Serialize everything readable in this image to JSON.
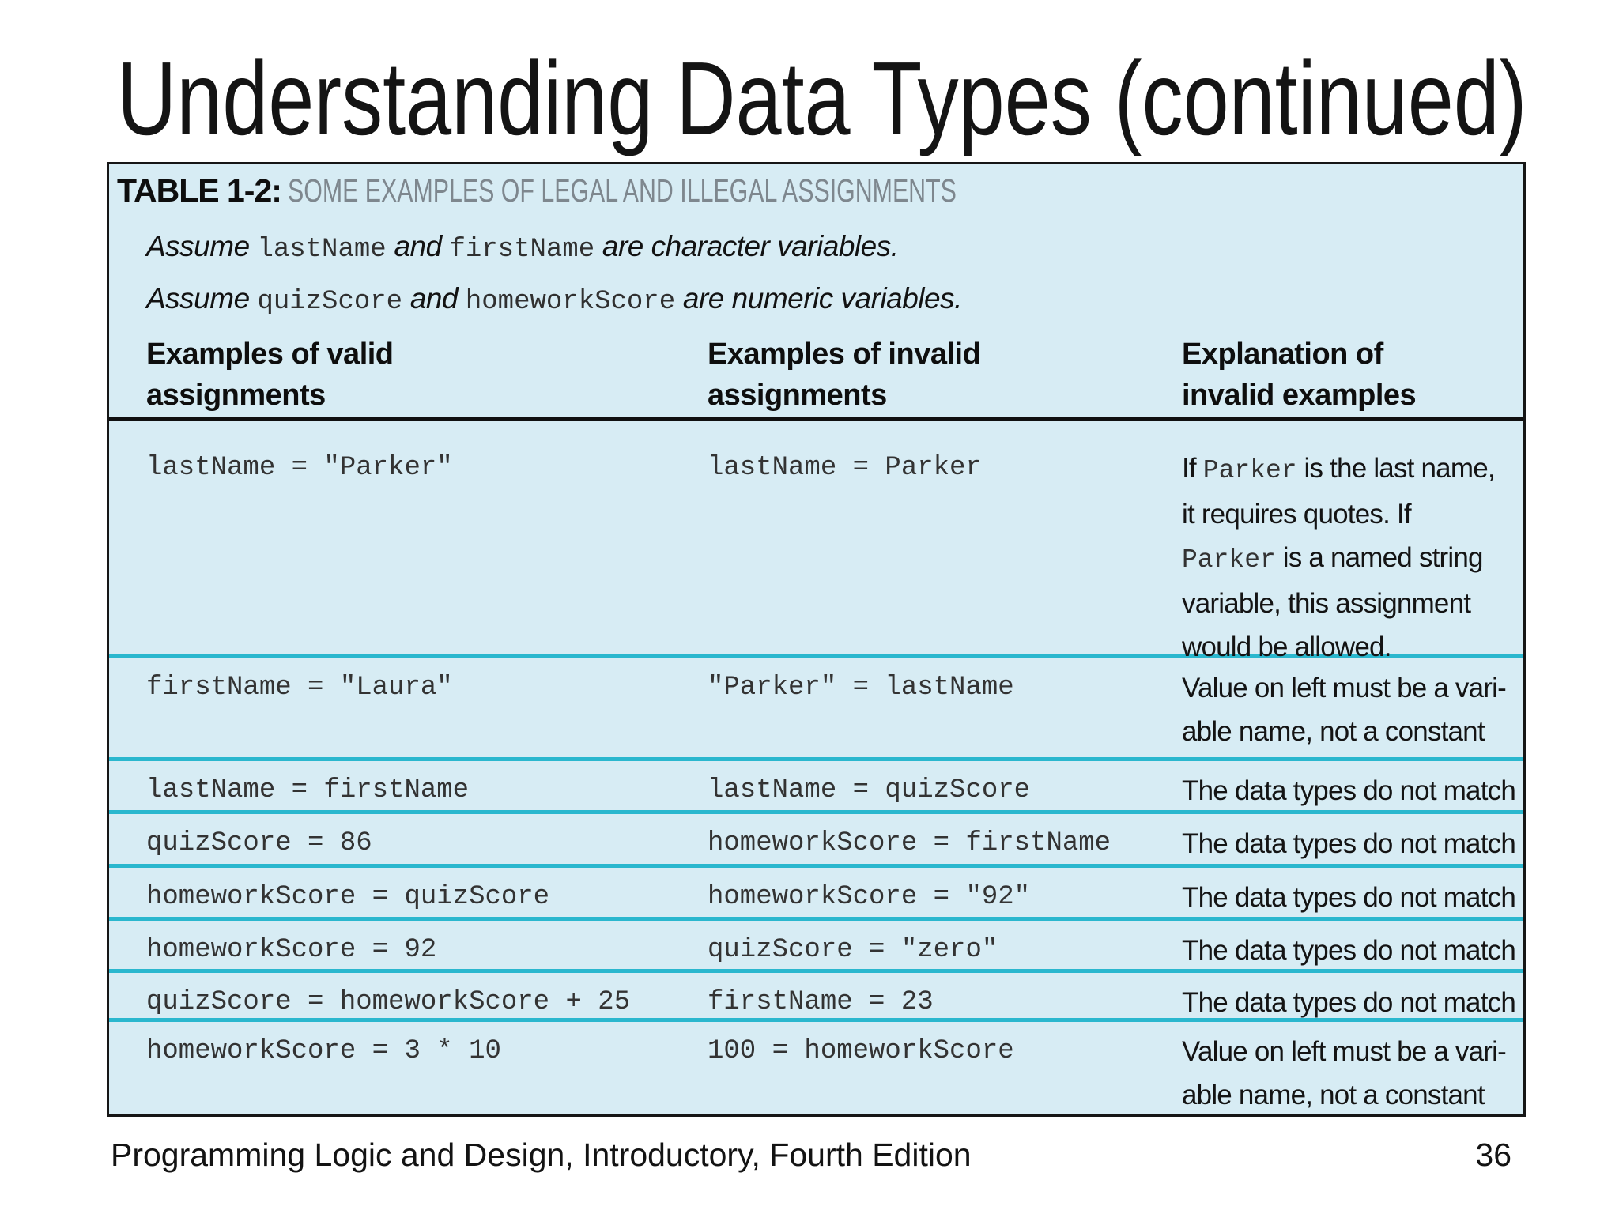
{
  "title": "Understanding Data Types (continued)",
  "table": {
    "caption_label": "TABLE 1-2:",
    "caption_text": "SOME EXAMPLES OF LEGAL AND ILLEGAL ASSIGNMENTS",
    "assume_notes": [
      [
        [
          "Assume ",
          {
            "t": "lastName",
            "m": 1
          },
          " and ",
          {
            "t": "firstName",
            "m": 1
          },
          " are character variables."
        ]
      ],
      [
        [
          "Assume ",
          {
            "t": "quizScore",
            "m": 1
          },
          " and ",
          {
            "t": "homeworkScore",
            "m": 1
          },
          " are numeric variables."
        ]
      ]
    ],
    "columns": [
      {
        "label": [
          "Examples of valid",
          "assignments"
        ]
      },
      {
        "label": [
          "Examples of invalid",
          "assignments"
        ]
      },
      {
        "label": [
          "Explanation of",
          "invalid examples"
        ]
      }
    ],
    "rows": [
      {
        "valid": "lastName = \"Parker\"",
        "invalid": "lastName = Parker",
        "explanation": [
          [
            "If ",
            {
              "t": "Parker",
              "m": 1
            },
            " is the last name,"
          ],
          [
            "it requires quotes. If"
          ],
          [
            {
              "t": "Parker",
              "m": 1
            },
            " is a named string"
          ],
          [
            "variable, this assignment"
          ],
          [
            "would be allowed."
          ]
        ]
      },
      {
        "valid": "firstName = \"Laura\"",
        "invalid": "\"Parker\" = lastName",
        "explanation": [
          "Value on left must be a vari-",
          "able name, not a constant"
        ]
      },
      {
        "valid": "lastName = firstName",
        "invalid": "lastName = quizScore",
        "explanation": [
          "The data types do not match"
        ]
      },
      {
        "valid": "quizScore = 86",
        "invalid": "homeworkScore = firstName",
        "explanation": [
          "The data types do not match"
        ]
      },
      {
        "valid": "homeworkScore = quizScore",
        "invalid": "homeworkScore = \"92\"",
        "explanation": [
          "The data types do not match"
        ]
      },
      {
        "valid": "homeworkScore = 92",
        "invalid": "quizScore = \"zero\"",
        "explanation": [
          "The data types do not match"
        ]
      },
      {
        "valid": "quizScore = homeworkScore + 25",
        "invalid": "firstName = 23",
        "explanation": [
          "The data types do not match"
        ]
      },
      {
        "valid": "homeworkScore = 3 * 10",
        "invalid": "100 = homeworkScore",
        "explanation": [
          "Value on left must be a vari-",
          "able name, not a constant"
        ]
      }
    ]
  },
  "footer": {
    "text": "Programming Logic and Design, Introductory, Fourth Edition",
    "page": "36"
  },
  "colors": {
    "table_background": "#d7ecf4",
    "row_divider": "#2ab7ce",
    "table_border": "#161616",
    "caption_gray": "#7e878e",
    "code_text": "#333333"
  }
}
